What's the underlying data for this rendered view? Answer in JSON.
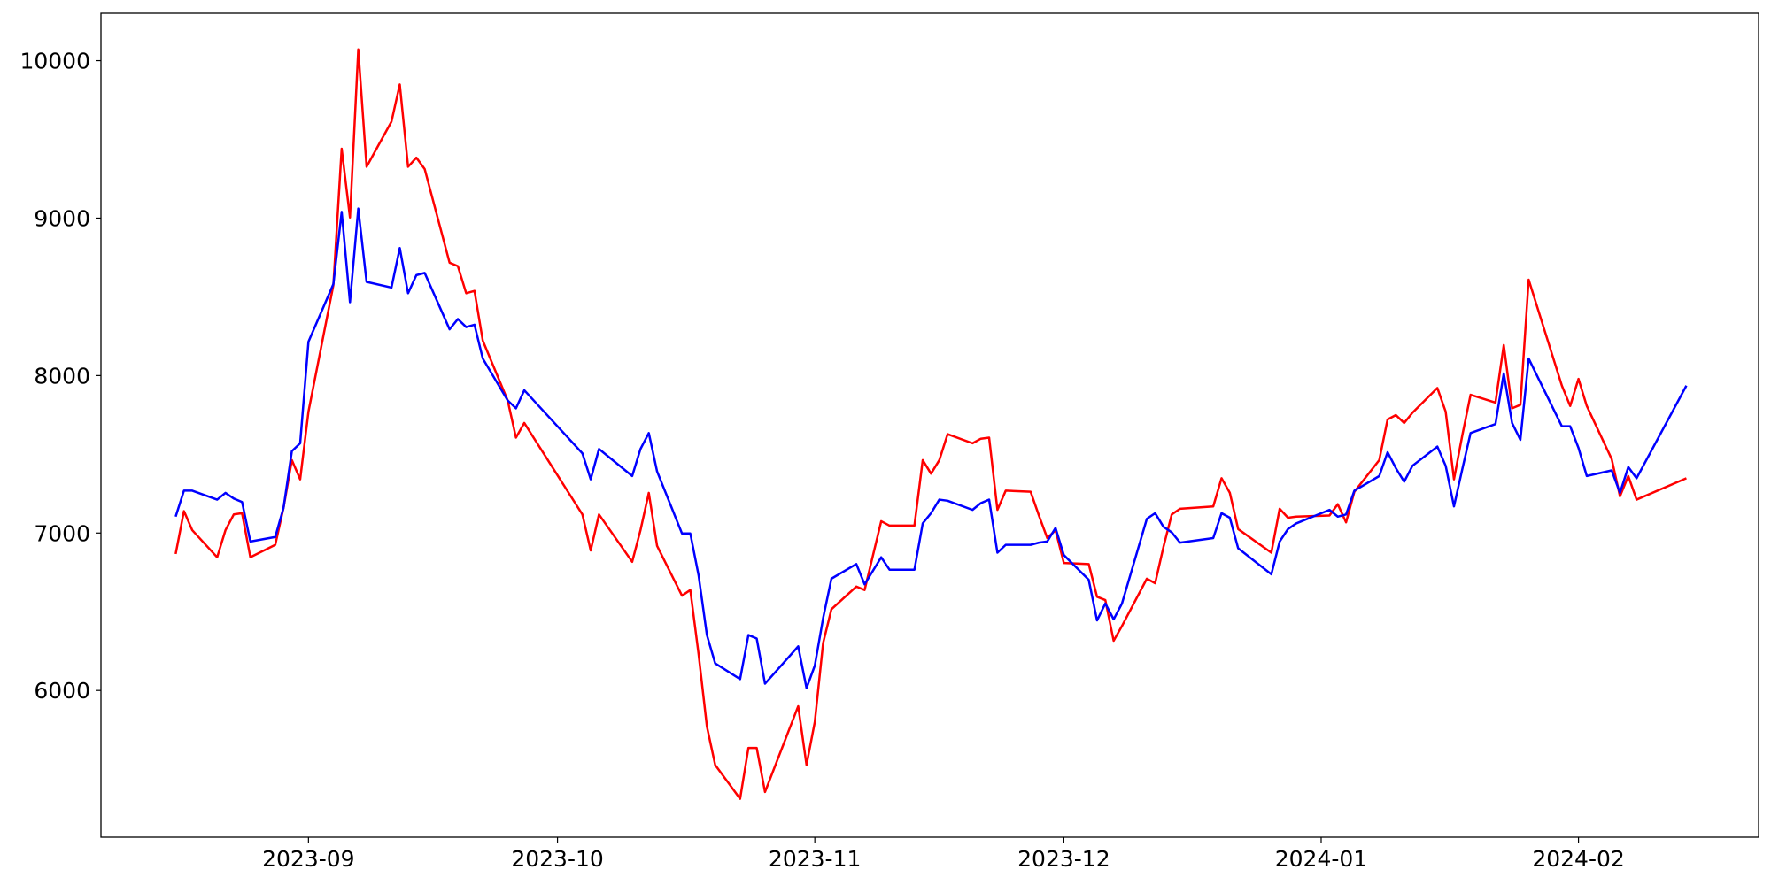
{
  "chart_data": {
    "type": "line",
    "x": [
      15,
      16,
      17,
      20,
      21,
      22,
      23,
      24,
      27,
      28,
      29,
      30,
      31,
      34,
      35,
      36,
      37,
      38,
      41,
      42,
      43,
      44,
      45,
      48,
      49,
      50,
      51,
      52,
      55,
      56,
      57,
      64,
      65,
      66,
      70,
      71,
      72,
      73,
      76,
      77,
      78,
      79,
      80,
      83,
      84,
      85,
      86,
      90,
      91,
      92,
      93,
      94,
      97,
      98,
      100,
      101,
      104,
      105,
      106,
      107,
      108,
      111,
      112,
      113,
      114,
      115,
      118,
      119,
      120,
      121,
      122,
      125,
      126,
      127,
      128,
      129,
      132,
      133,
      134,
      135,
      136,
      140,
      141,
      142,
      143,
      147,
      148,
      149,
      150,
      154,
      155,
      156,
      157,
      160,
      161,
      162,
      163,
      164,
      167,
      168,
      169,
      170,
      171,
      174,
      175,
      176,
      177,
      178,
      182,
      183,
      184,
      185,
      188,
      189,
      190,
      191,
      197
    ],
    "series": [
      {
        "color": "#ff0000",
        "values": [
          6867,
          7139,
          7018,
          6846,
          7018,
          7118,
          7126,
          6846,
          6925,
          7161,
          7463,
          7341,
          7771,
          8574,
          9441,
          9004,
          10072,
          9326,
          9613,
          9849,
          9326,
          9384,
          9312,
          8717,
          8695,
          8523,
          8538,
          8222,
          7842,
          7606,
          7699,
          7118,
          6889,
          7118,
          6817,
          7018,
          7255,
          6918,
          6602,
          6638,
          6230,
          5771,
          5527,
          5312,
          5635,
          5635,
          5355,
          5900,
          5527,
          5800,
          6301,
          6516,
          6660,
          6638,
          7075,
          7047,
          7047,
          7463,
          7377,
          7463,
          7628,
          7570,
          7599,
          7606,
          7147,
          7269,
          7262,
          7111,
          6968,
          7018,
          6810,
          6803,
          6595,
          6574,
          6316,
          6409,
          6710,
          6681,
          6911,
          7118,
          7154,
          7169,
          7348,
          7255,
          7025,
          6875,
          7154,
          7097,
          7104,
          7111,
          7183,
          7068,
          7262,
          7463,
          7721,
          7749,
          7699,
          7764,
          7921,
          7771,
          7341,
          7620,
          7878,
          7828,
          8194,
          7792,
          7814,
          8609,
          7936,
          7807,
          7979,
          7807,
          7470,
          7233,
          7362,
          7212,
          7348
        ]
      },
      {
        "color": "#0000ff",
        "values": [
          7104,
          7269,
          7269,
          7212,
          7255,
          7219,
          7197,
          6946,
          6975,
          7161,
          7520,
          7570,
          8215,
          8581,
          9040,
          8466,
          9061,
          8595,
          8559,
          8810,
          8523,
          8638,
          8652,
          8294,
          8359,
          8308,
          8323,
          8108,
          7842,
          7792,
          7907,
          7506,
          7341,
          7534,
          7362,
          7534,
          7635,
          7391,
          6997,
          6997,
          6731,
          6352,
          6172,
          6072,
          6352,
          6330,
          6043,
          6280,
          6015,
          6158,
          6459,
          6710,
          6803,
          6674,
          6846,
          6767,
          6767,
          7061,
          7126,
          7212,
          7205,
          7147,
          7190,
          7212,
          6875,
          6925,
          6925,
          6939,
          6946,
          7032,
          6860,
          6703,
          6445,
          6552,
          6452,
          6552,
          7090,
          7126,
          7040,
          7004,
          6939,
          6968,
          7126,
          7097,
          6903,
          6738,
          6946,
          7025,
          7061,
          7147,
          7104,
          7118,
          7269,
          7362,
          7513,
          7412,
          7326,
          7427,
          7549,
          7427,
          7169,
          7405,
          7635,
          7692,
          8014,
          7699,
          7592,
          8108,
          7678,
          7678,
          7541,
          7362,
          7398,
          7255,
          7419,
          7348,
          7936
        ]
      }
    ],
    "xlim": [
      6,
      205.7
    ],
    "xticks": [
      {
        "value": 31,
        "label": "2023-09"
      },
      {
        "value": 61,
        "label": "2023-10"
      },
      {
        "value": 92,
        "label": "2023-11"
      },
      {
        "value": 122,
        "label": "2023-12"
      },
      {
        "value": 153,
        "label": "2024-01"
      },
      {
        "value": 184,
        "label": "2024-02"
      }
    ],
    "ylim": [
      5068,
      10301
    ],
    "yticks": [
      6000,
      7000,
      8000,
      9000,
      10000
    ]
  }
}
